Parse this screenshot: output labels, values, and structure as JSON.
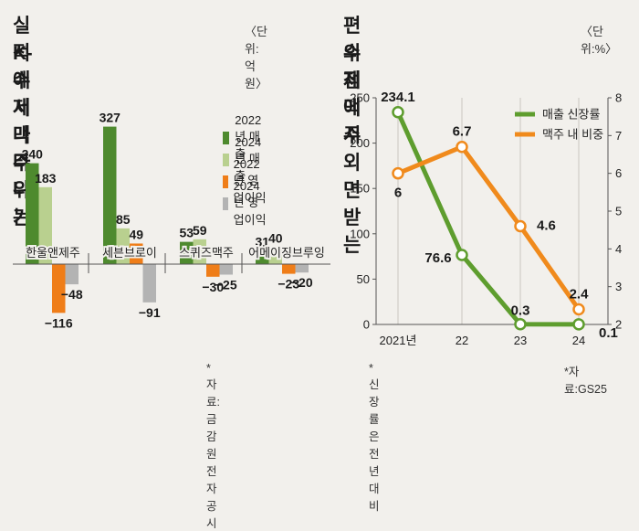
{
  "left": {
    "title_line1": "실적에서 나타나는",
    "title_line2": "K-수제맥주 위기",
    "unit": "〈단위:억원〉",
    "source": "*자료:금감원 전자공시"
  },
  "right": {
    "title_line1": "편의점에서 외면받는",
    "title_line2": "수제맥주",
    "unit": "〈단위:%〉",
    "note": "*신장률은 전년 대비",
    "source": "*자료:GS25"
  },
  "chart_data": [
    {
      "type": "bar",
      "categories": [
        "한울앤제주",
        "세븐브로이",
        "스퀴즈맥주",
        "어메이징브루잉"
      ],
      "series": [
        {
          "name": "2022년 매출",
          "color": "#4e8a2e",
          "values": [
            240,
            327,
            53,
            31
          ],
          "labels": [
            "240",
            "327",
            "53",
            "31"
          ]
        },
        {
          "name": "2024년 매출",
          "color": "#b9d08f",
          "values": [
            183,
            85,
            59,
            40
          ],
          "labels": [
            "183",
            "85",
            "59",
            "40"
          ]
        },
        {
          "name": "2022년 영업이익",
          "color": "#ef7d18",
          "values": [
            -116,
            49,
            -30,
            -23
          ],
          "labels": [
            "−116",
            "49",
            "−30",
            "−23"
          ]
        },
        {
          "name": "2024년 영업이익",
          "color": "#b3b3b3",
          "values": [
            -48,
            -91,
            -25,
            -20
          ],
          "labels": [
            "−48",
            "−91",
            "−25",
            "−20"
          ]
        }
      ]
    },
    {
      "type": "line",
      "x": [
        "2021년",
        "22",
        "23",
        "24"
      ],
      "ylim_left": [
        0,
        250
      ],
      "yticks_left": [
        "0",
        "50",
        "100",
        "150",
        "200",
        "250"
      ],
      "ylim_right": [
        2,
        8
      ],
      "yticks_right": [
        "2",
        "3",
        "4",
        "5",
        "6",
        "7",
        "8"
      ],
      "legend_position": "top-right",
      "series": [
        {
          "name": "매출 신장률",
          "axis": "left",
          "color": "#5e9d2e",
          "values": [
            234.1,
            76.6,
            0.3,
            0.1
          ],
          "labels": [
            "234.1",
            "76.6",
            "0.3",
            "0.1"
          ]
        },
        {
          "name": "맥주 내 비중",
          "axis": "right",
          "color": "#f08a1c",
          "values": [
            6,
            6.7,
            4.6,
            2.4
          ],
          "labels": [
            "6",
            "6.7",
            "4.6",
            "2.4"
          ]
        }
      ]
    }
  ]
}
